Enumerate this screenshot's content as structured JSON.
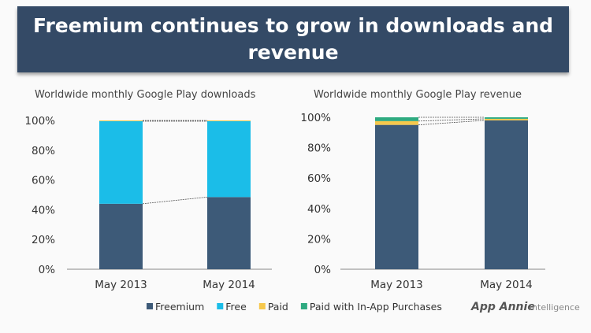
{
  "title": "Freemium continues to grow in downloads and revenue",
  "colors": {
    "banner": "#344a66",
    "Freemium": "#3d5a78",
    "Free": "#1bbde8",
    "Paid": "#f6c84c",
    "Paid with In-App Purchases": "#2eaa80"
  },
  "legend": [
    "Freemium",
    "Free",
    "Paid",
    "Paid with In-App Purchases"
  ],
  "brand": {
    "logo": "App Annie",
    "suffix": "intelligence"
  },
  "chart_data": [
    {
      "type": "bar",
      "stacked": true,
      "title": "Worldwide monthly Google Play downloads",
      "categories": [
        "May 2013",
        "May 2014"
      ],
      "series": [
        {
          "name": "Freemium",
          "values": [
            44,
            48.5
          ]
        },
        {
          "name": "Free",
          "values": [
            55.5,
            51
          ]
        },
        {
          "name": "Paid",
          "values": [
            0.5,
            0.5
          ]
        }
      ],
      "ylim": [
        0,
        100
      ],
      "yticks": [
        "0%",
        "20%",
        "40%",
        "60%",
        "80%",
        "100%"
      ],
      "grid": false
    },
    {
      "type": "bar",
      "stacked": true,
      "title": "Worldwide monthly Google Play revenue",
      "categories": [
        "May 2013",
        "May 2014"
      ],
      "series": [
        {
          "name": "Freemium",
          "values": [
            95,
            98
          ]
        },
        {
          "name": "Paid",
          "values": [
            2.5,
            1
          ]
        },
        {
          "name": "Paid with In-App Purchases",
          "values": [
            2.5,
            1
          ]
        }
      ],
      "ylim": [
        0,
        100
      ],
      "yticks": [
        "0%",
        "20%",
        "40%",
        "60%",
        "80%",
        "100%"
      ],
      "grid": false
    }
  ]
}
